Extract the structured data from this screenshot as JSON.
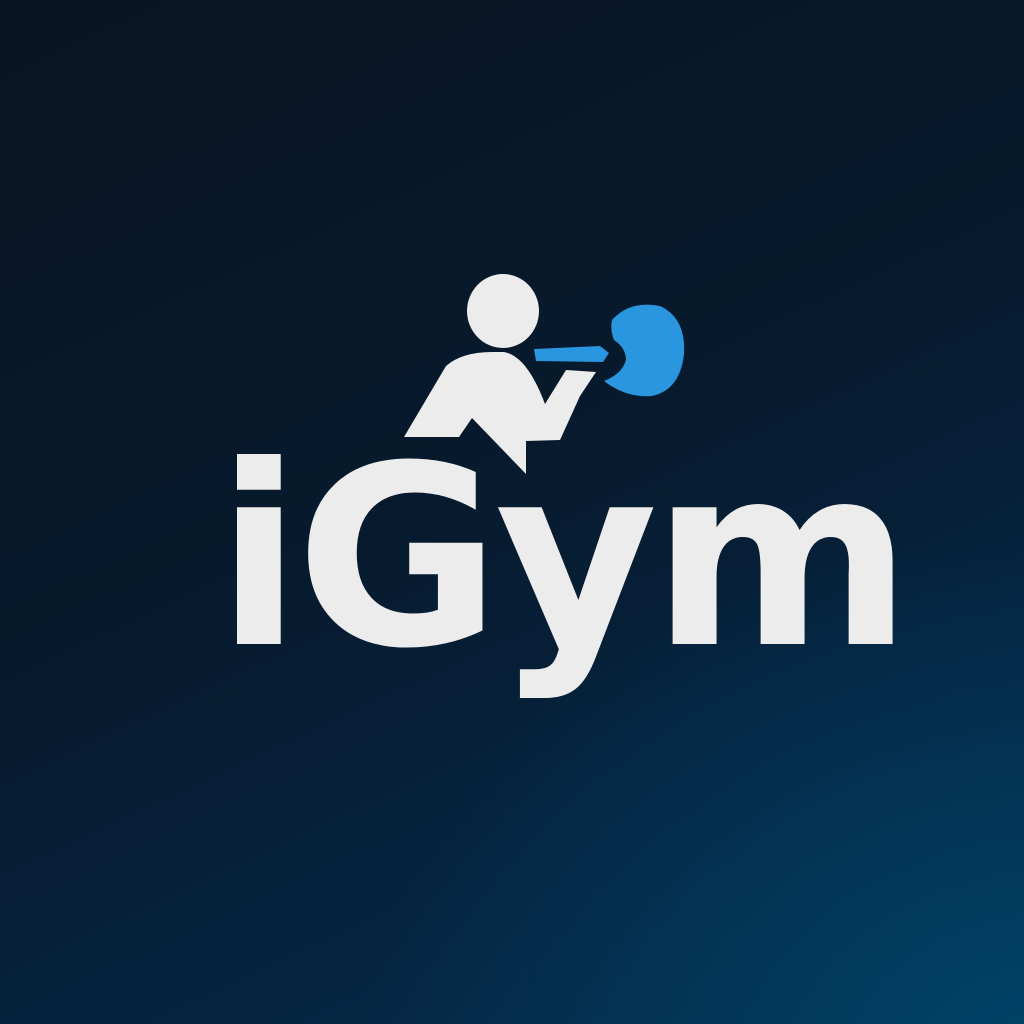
{
  "brand": {
    "name": "iGym"
  },
  "icons": {
    "figure": "person-lifting-icon",
    "weight": "weight-plate-icon",
    "bar": "barbell-bar-icon"
  },
  "colors": {
    "background_dark": "#081423",
    "background_light": "#01446a",
    "wordmark": "#ececec",
    "accent": "#2a96e0"
  }
}
